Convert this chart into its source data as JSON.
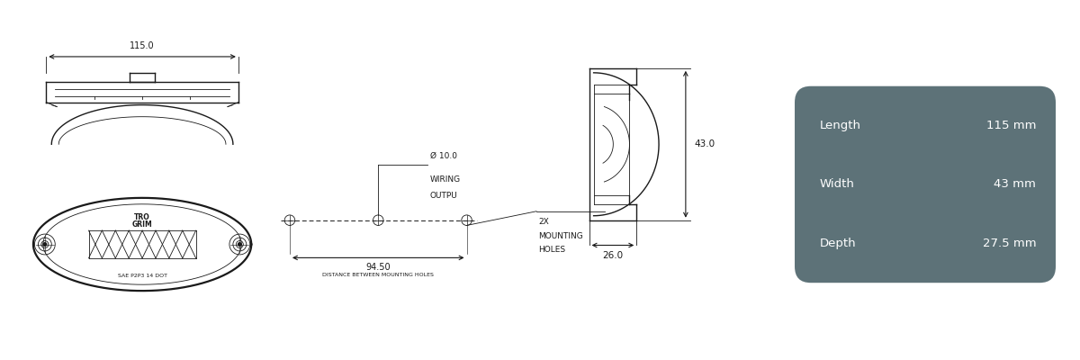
{
  "bg_color": "#ffffff",
  "line_color": "#1a1a1a",
  "box_bg_color": "#5d7278",
  "box_text_color": "#ffffff",
  "box_labels": [
    "Length",
    "Width",
    "Depth"
  ],
  "box_values": [
    "115 mm",
    "43 mm",
    "27.5 mm"
  ],
  "dim_115": "115.0",
  "dim_43": "43.0",
  "dim_26": "26.0",
  "dim_94": "94.50",
  "wiring_line1": "Ø 10.0",
  "wiring_line2": "WIRING",
  "wiring_line3": "OUTPU",
  "mounting_line1": "2X",
  "mounting_line2": "MOUNTING",
  "mounting_line3": "HOLES",
  "dist_text": "DISTANCE BETWEEN MOUNTING HOLES",
  "sae_text": "SAE P2P3 14 DOT"
}
